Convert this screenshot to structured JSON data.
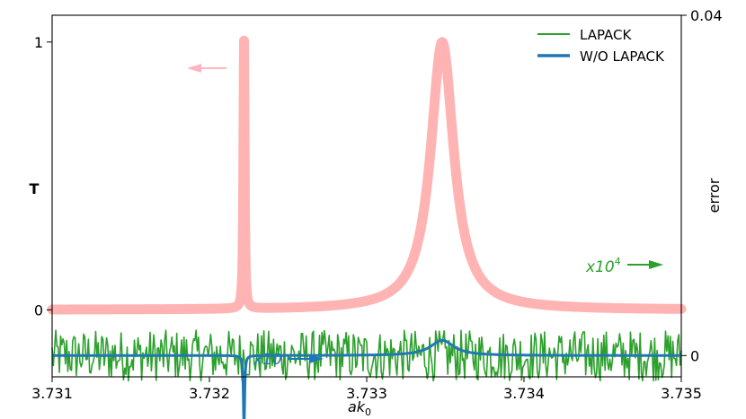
{
  "chart_data": {
    "type": "line",
    "title": "",
    "xlabel": "ak",
    "xlabel_subscript": "0",
    "ylabel_left": "T",
    "ylabel_right": "error",
    "xlim": [
      3.731,
      3.735
    ],
    "ylim_left": [
      -0.25,
      1.1
    ],
    "ylim_right": [
      -0.0025,
      0.04
    ],
    "xticks": [
      "3.731",
      "3.732",
      "3.733",
      "3.734",
      "3.735"
    ],
    "yticks_left": [
      "0",
      "1"
    ],
    "yticks_right": [
      "0",
      "0.04"
    ],
    "grid": false,
    "legend_position": "top-right",
    "transmission": {
      "axis": "left",
      "color": "#ffb3b3",
      "peaks": [
        {
          "x": 3.73222,
          "height": 1.0,
          "width": 4.5e-06
        },
        {
          "x": 3.73348,
          "height": 1.0,
          "width": 9e-05
        }
      ]
    },
    "series": [
      {
        "name": "LAPACK",
        "axis": "right",
        "color": "#2ca02c",
        "description_scale_label": "x10",
        "description_scale_exp": "4",
        "amplitude": 0.003
      },
      {
        "name": "W/O LAPACK",
        "axis": "right",
        "color": "#1f77b4",
        "scale_label": "x10",
        "features": [
          {
            "x": 3.73222,
            "value": -0.009
          },
          {
            "x": 3.73348,
            "value": 0.0018
          }
        ]
      }
    ],
    "annotations": [
      {
        "text": "x10",
        "color": "#1f77b4",
        "arrow": "right"
      },
      {
        "text": "x10",
        "superscript": "4",
        "color": "#2ca02c",
        "arrow": "right"
      },
      {
        "arrow": "left",
        "color": "#ffb6c1"
      }
    ]
  }
}
